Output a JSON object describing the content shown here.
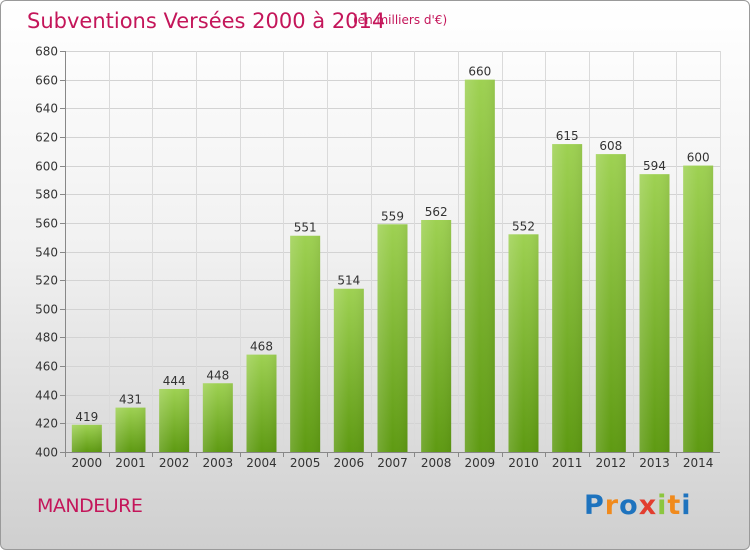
{
  "header": {
    "title": "Subventions Versées 2000 à 2014",
    "unit": "(en milliers d'€)"
  },
  "footer": {
    "commune": "MANDEURE",
    "logo": "Proxiti"
  },
  "colors": {
    "accent": "#c4165a",
    "bar_light": "#9ed152",
    "bar_dark": "#5e9a12",
    "logo_letters": [
      "#1e73be",
      "#f08a1c",
      "#1e73be",
      "#e23d2f",
      "#8cc63f",
      "#f08a1c",
      "#1e73be"
    ]
  },
  "chart_data": {
    "type": "bar",
    "categories": [
      "2000",
      "2001",
      "2002",
      "2003",
      "2004",
      "2005",
      "2006",
      "2007",
      "2008",
      "2009",
      "2010",
      "2011",
      "2012",
      "2013",
      "2014"
    ],
    "values": [
      419,
      431,
      444,
      448,
      468,
      551,
      514,
      559,
      562,
      660,
      552,
      615,
      608,
      594,
      600
    ],
    "yticks": [
      400,
      420,
      440,
      460,
      480,
      500,
      520,
      540,
      560,
      580,
      600,
      620,
      640,
      660,
      680
    ],
    "ylim": [
      400,
      680
    ],
    "grid": true,
    "data_labels": true,
    "title": "Subventions Versées 2000 à 2014",
    "xlabel": "",
    "ylabel": ""
  }
}
